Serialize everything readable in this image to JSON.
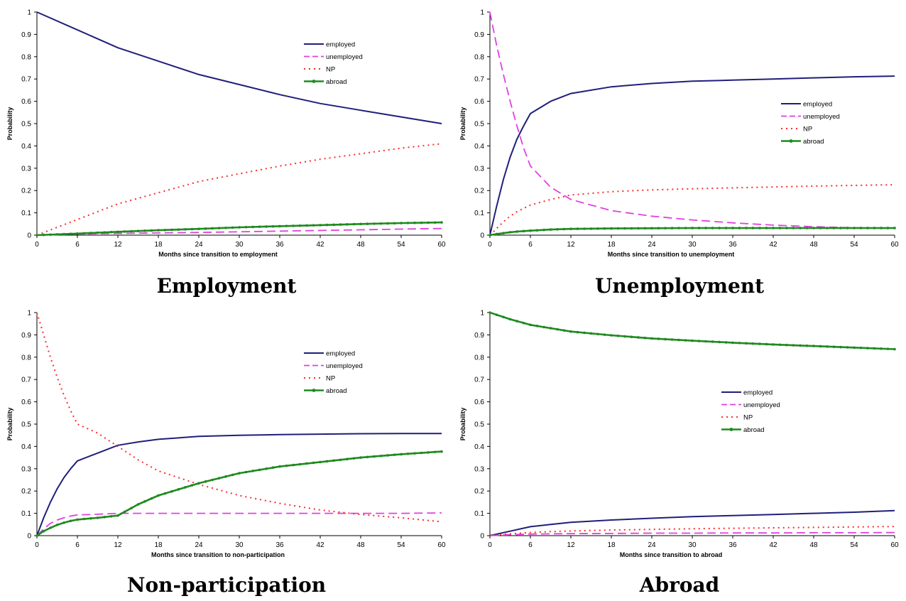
{
  "colors": {
    "employed": "#1f1f7a",
    "unemployed": "#e040e0",
    "NP": "#ff2a2a",
    "abroad": "#1f8a1f"
  },
  "chart_data": [
    {
      "type": "line",
      "caption": "Employment",
      "xlabel": "Months since transition to employment",
      "ylabel": "Probability",
      "xlim": [
        0,
        60
      ],
      "ylim": [
        0,
        1
      ],
      "xticks": [
        0,
        6,
        12,
        18,
        24,
        30,
        36,
        42,
        48,
        54,
        60
      ],
      "yticks": [
        0,
        0.1,
        0.2,
        0.3,
        0.4,
        0.5,
        0.6,
        0.7,
        0.8,
        0.9,
        1
      ],
      "legend_position": "top-right",
      "x": [
        0,
        6,
        12,
        18,
        24,
        30,
        36,
        42,
        48,
        54,
        60
      ],
      "series": [
        {
          "name": "employed",
          "style": "solid",
          "values": [
            1.0,
            0.92,
            0.84,
            0.78,
            0.72,
            0.675,
            0.63,
            0.59,
            0.56,
            0.53,
            0.5
          ]
        },
        {
          "name": "unemployed",
          "style": "dash",
          "values": [
            0,
            0.005,
            0.008,
            0.01,
            0.012,
            0.015,
            0.018,
            0.021,
            0.024,
            0.027,
            0.03
          ]
        },
        {
          "name": "NP",
          "style": "dot",
          "values": [
            0,
            0.07,
            0.14,
            0.19,
            0.24,
            0.275,
            0.31,
            0.34,
            0.365,
            0.39,
            0.41
          ]
        },
        {
          "name": "abroad",
          "style": "marker",
          "values": [
            0,
            0.007,
            0.015,
            0.022,
            0.028,
            0.035,
            0.04,
            0.045,
            0.05,
            0.054,
            0.057
          ]
        }
      ]
    },
    {
      "type": "line",
      "caption": "Unemployment",
      "xlabel": "Months since transition to unemployment",
      "ylabel": "Probability",
      "xlim": [
        0,
        60
      ],
      "ylim": [
        0,
        1
      ],
      "xticks": [
        0,
        6,
        12,
        18,
        24,
        30,
        36,
        42,
        48,
        54,
        60
      ],
      "yticks": [
        0,
        0.1,
        0.2,
        0.3,
        0.4,
        0.5,
        0.6,
        0.7,
        0.8,
        0.9,
        1
      ],
      "legend_position": "right",
      "x": [
        0,
        1,
        2,
        3,
        4,
        5,
        6,
        9,
        12,
        18,
        24,
        30,
        36,
        42,
        48,
        54,
        60
      ],
      "series": [
        {
          "name": "employed",
          "style": "solid",
          "values": [
            0,
            0.13,
            0.25,
            0.35,
            0.43,
            0.49,
            0.545,
            0.6,
            0.635,
            0.665,
            0.68,
            0.69,
            0.695,
            0.7,
            0.705,
            0.71,
            0.713
          ]
        },
        {
          "name": "unemployed",
          "style": "dash",
          "values": [
            1.0,
            0.85,
            0.72,
            0.6,
            0.49,
            0.39,
            0.31,
            0.215,
            0.16,
            0.11,
            0.085,
            0.068,
            0.055,
            0.045,
            0.038,
            0.033,
            0.03
          ]
        },
        {
          "name": "NP",
          "style": "dot",
          "values": [
            0,
            0.03,
            0.06,
            0.085,
            0.105,
            0.12,
            0.135,
            0.16,
            0.18,
            0.195,
            0.203,
            0.208,
            0.212,
            0.216,
            0.22,
            0.223,
            0.226
          ]
        },
        {
          "name": "abroad",
          "style": "marker",
          "values": [
            0,
            0.005,
            0.009,
            0.013,
            0.016,
            0.018,
            0.02,
            0.025,
            0.028,
            0.03,
            0.031,
            0.032,
            0.032,
            0.032,
            0.032,
            0.032,
            0.032
          ]
        }
      ]
    },
    {
      "type": "line",
      "caption": "Non-participation",
      "xlabel": "Months since transition to non-participation",
      "ylabel": "Probability",
      "xlim": [
        0,
        60
      ],
      "ylim": [
        0,
        1
      ],
      "xticks": [
        0,
        6,
        12,
        18,
        24,
        30,
        36,
        42,
        48,
        54,
        60
      ],
      "yticks": [
        0,
        0.1,
        0.2,
        0.3,
        0.4,
        0.5,
        0.6,
        0.7,
        0.8,
        0.9,
        1
      ],
      "legend_position": "top-right",
      "x": [
        0,
        1,
        2,
        3,
        4,
        5,
        6,
        9,
        12,
        15,
        18,
        24,
        30,
        36,
        42,
        48,
        54,
        60
      ],
      "series": [
        {
          "name": "employed",
          "style": "solid",
          "values": [
            0,
            0.08,
            0.15,
            0.21,
            0.26,
            0.3,
            0.335,
            0.37,
            0.405,
            0.42,
            0.432,
            0.445,
            0.45,
            0.453,
            0.455,
            0.457,
            0.458,
            0.458
          ]
        },
        {
          "name": "unemployed",
          "style": "dash",
          "values": [
            0,
            0.03,
            0.055,
            0.07,
            0.08,
            0.088,
            0.093,
            0.096,
            0.1,
            0.1,
            0.1,
            0.1,
            0.1,
            0.1,
            0.1,
            0.1,
            0.1,
            0.102
          ]
        },
        {
          "name": "NP",
          "style": "dot",
          "values": [
            1.0,
            0.9,
            0.8,
            0.71,
            0.63,
            0.56,
            0.5,
            0.46,
            0.4,
            0.34,
            0.29,
            0.23,
            0.18,
            0.145,
            0.115,
            0.095,
            0.08,
            0.062
          ]
        },
        {
          "name": "abroad",
          "style": "marker",
          "values": [
            0,
            0.02,
            0.035,
            0.048,
            0.058,
            0.066,
            0.072,
            0.08,
            0.09,
            0.14,
            0.18,
            0.235,
            0.28,
            0.31,
            0.33,
            0.35,
            0.365,
            0.377
          ]
        }
      ]
    },
    {
      "type": "line",
      "caption": "Abroad",
      "xlabel": "Months since transition to abroad",
      "ylabel": "Probability",
      "xlim": [
        0,
        60
      ],
      "ylim": [
        0,
        1
      ],
      "xticks": [
        0,
        6,
        12,
        18,
        24,
        30,
        36,
        42,
        48,
        54,
        60
      ],
      "yticks": [
        0,
        0.1,
        0.2,
        0.3,
        0.4,
        0.5,
        0.6,
        0.7,
        0.8,
        0.9,
        1
      ],
      "legend_position": "center-right",
      "x": [
        0,
        3,
        6,
        9,
        12,
        18,
        24,
        30,
        36,
        42,
        48,
        54,
        60
      ],
      "series": [
        {
          "name": "employed",
          "style": "solid",
          "values": [
            0,
            0.02,
            0.04,
            0.05,
            0.06,
            0.07,
            0.078,
            0.085,
            0.09,
            0.095,
            0.1,
            0.105,
            0.112
          ]
        },
        {
          "name": "unemployed",
          "style": "dash",
          "values": [
            0,
            0.004,
            0.007,
            0.008,
            0.009,
            0.01,
            0.011,
            0.011,
            0.012,
            0.012,
            0.013,
            0.013,
            0.014
          ]
        },
        {
          "name": "NP",
          "style": "dot",
          "values": [
            0,
            0.008,
            0.014,
            0.018,
            0.021,
            0.025,
            0.028,
            0.031,
            0.033,
            0.035,
            0.037,
            0.039,
            0.041
          ]
        },
        {
          "name": "abroad",
          "style": "marker",
          "values": [
            1.0,
            0.97,
            0.945,
            0.93,
            0.915,
            0.898,
            0.884,
            0.874,
            0.865,
            0.857,
            0.85,
            0.843,
            0.836
          ]
        }
      ]
    }
  ]
}
